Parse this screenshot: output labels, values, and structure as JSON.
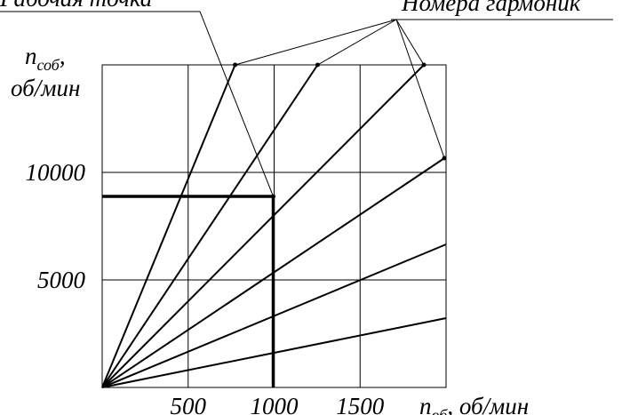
{
  "chart_data": {
    "type": "line",
    "xlim": [
      0,
      2000
    ],
    "ylim": [
      0,
      15000
    ],
    "xticks": [
      500,
      1000,
      1500
    ],
    "yticks": [
      5000,
      10000
    ],
    "grid": true,
    "y_label": {
      "symbol": "n",
      "subscript": "соб",
      "suffix": ",",
      "unit": "об/мин"
    },
    "x_label": {
      "symbol": "n",
      "subscript": "об",
      "suffix": ", об/мин"
    },
    "series": [
      {
        "color": "#000000",
        "x": [
          0,
          773
        ],
        "values": [
          0,
          15000
        ]
      },
      {
        "color": "#000000",
        "x": [
          0,
          1253
        ],
        "values": [
          0,
          15000
        ]
      },
      {
        "color": "#000000",
        "x": [
          0,
          1871
        ],
        "values": [
          0,
          15000
        ]
      },
      {
        "color": "#000000",
        "x": [
          0,
          1990
        ],
        "values": [
          0,
          10661
        ]
      },
      {
        "color": "#000000",
        "x": [
          0,
          2000
        ],
        "values": [
          0,
          6653
        ]
      },
      {
        "color": "#000000",
        "x": [
          0,
          2000
        ],
        "values": [
          0,
          3223
        ]
      }
    ],
    "operating_point": {
      "label": "Рабочая точка",
      "x": 995,
      "y": 8884
    },
    "harmonics_label": "Номера гармоник"
  }
}
